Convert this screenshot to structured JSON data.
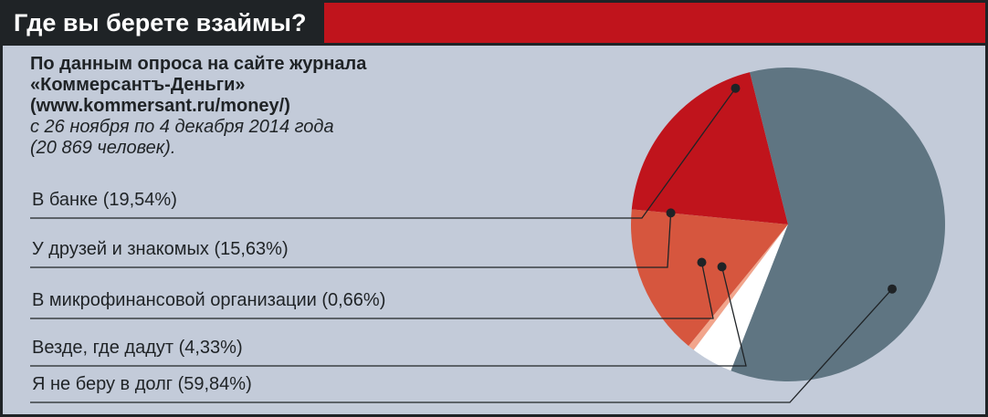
{
  "header": {
    "title": "Где вы берете взаймы?",
    "dark_color": "#1f2326",
    "accent_color": "#c0141c"
  },
  "intro": {
    "line1": "По данным опроса на сайте журнала",
    "line2": "«Коммерсантъ-Деньги»",
    "line3": "(www.kommersant.ru/money/)",
    "line4": "с 26 ноября по 4 декабря 2014 года",
    "line5": "(20 869 человек)."
  },
  "chart_data": {
    "type": "pie",
    "title": "Где вы берете взаймы?",
    "slices": [
      {
        "label": "В банке (19,54%)",
        "value": 19.54,
        "color": "#c0141c"
      },
      {
        "label": "У друзей и знакомых (15,63%)",
        "value": 15.63,
        "color": "#d6563e"
      },
      {
        "label": "В микрофинансовой организации (0,66%)",
        "value": 0.66,
        "color": "#f2a58c"
      },
      {
        "label": "Везде, где дадут (4,33%)",
        "value": 4.33,
        "color": "#ffffff"
      },
      {
        "label": "Я не беру в долг (59,84%)",
        "value": 59.84,
        "color": "#5f7582"
      }
    ],
    "start_angle_deg": -14.1,
    "direction": "counterclockwise",
    "legend": "left, connected to slices by leader lines"
  }
}
